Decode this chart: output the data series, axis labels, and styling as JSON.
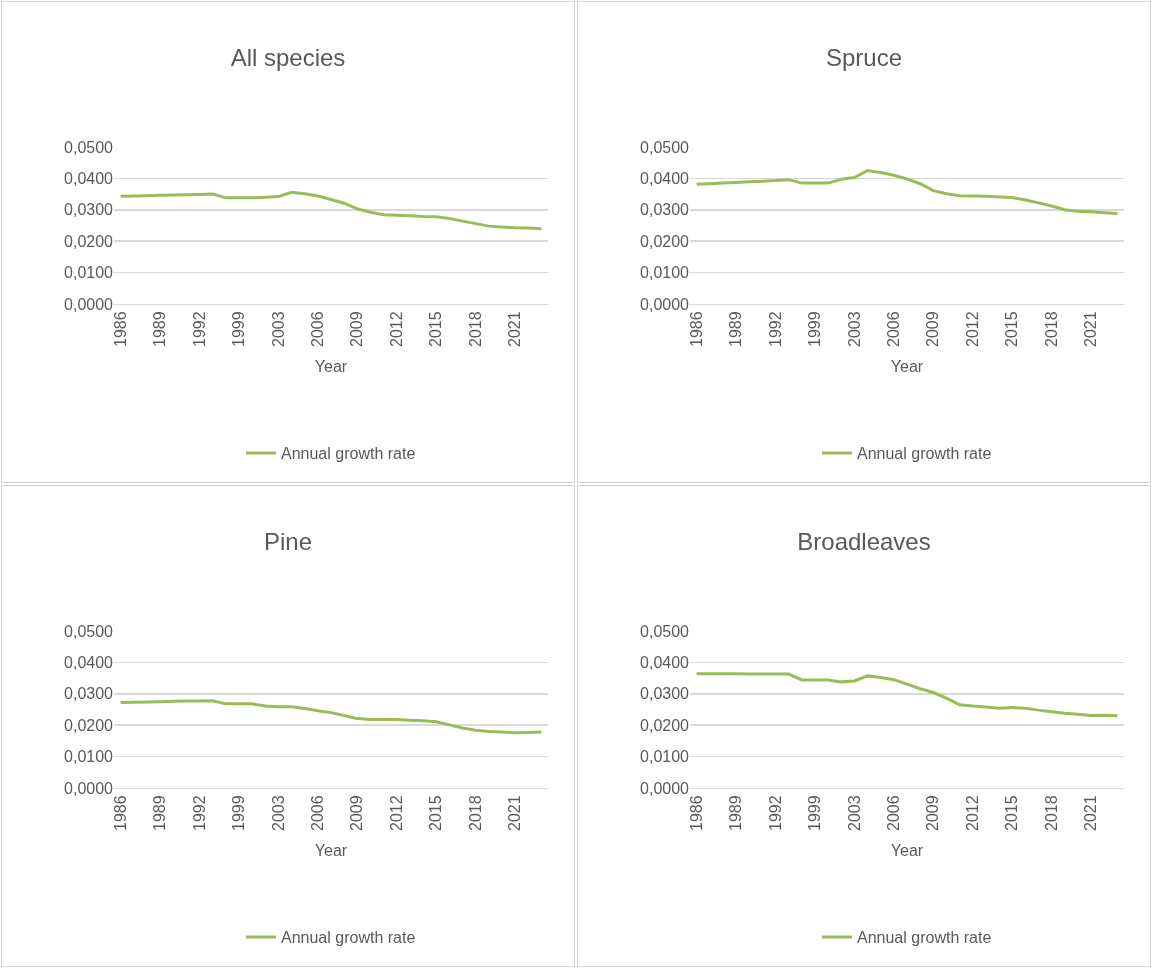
{
  "chart_data": [
    {
      "type": "line",
      "title": "All species",
      "xlabel": "Year",
      "categories": [
        "1986",
        null,
        null,
        "1989",
        null,
        null,
        "1992",
        null,
        null,
        "1999",
        null,
        null,
        "2003",
        null,
        null,
        "2006",
        null,
        null,
        "2009",
        null,
        null,
        "2012",
        null,
        null,
        "2015",
        null,
        null,
        "2018",
        null,
        null,
        "2021",
        null,
        null
      ],
      "series": [
        {
          "name": "Annual growth rate",
          "color": "#9bbb59",
          "values": [
            0.0343,
            0.0344,
            0.0345,
            0.0346,
            0.0347,
            0.0348,
            0.0349,
            0.035,
            0.0338,
            0.0338,
            0.0338,
            0.034,
            0.0342,
            0.0356,
            0.0351,
            0.0344,
            0.0333,
            0.0321,
            0.0303,
            0.0292,
            0.0284,
            0.0283,
            0.0281,
            0.0279,
            0.0278,
            0.0272,
            0.0264,
            0.0256,
            0.0248,
            0.0245,
            0.0243,
            0.0242,
            0.024
          ]
        }
      ],
      "ylim": [
        0,
        0.05
      ],
      "yticks": [
        {
          "value": 0,
          "label": "0,0000"
        },
        {
          "value": 0.01,
          "label": "0,0100"
        },
        {
          "value": 0.02,
          "label": "0,0200"
        },
        {
          "value": 0.03,
          "label": "0,0300"
        },
        {
          "value": 0.04,
          "label": "0,0400"
        },
        {
          "value": 0.05,
          "label": "0,0500"
        }
      ],
      "grid": "y",
      "legend": "bottom",
      "line_style": "solid"
    },
    {
      "type": "line",
      "title": "Spruce",
      "xlabel": "Year",
      "categories": [
        "1986",
        null,
        null,
        "1989",
        null,
        null,
        "1992",
        null,
        null,
        "1999",
        null,
        null,
        "2003",
        null,
        null,
        "2006",
        null,
        null,
        "2009",
        null,
        null,
        "2012",
        null,
        null,
        "2015",
        null,
        null,
        "2018",
        null,
        null,
        "2021",
        null,
        null
      ],
      "series": [
        {
          "name": "Annual growth rate",
          "color": "#9bbb59",
          "values": [
            0.0381,
            0.0383,
            0.0385,
            0.0387,
            0.0389,
            0.0391,
            0.0393,
            0.0396,
            0.0385,
            0.0385,
            0.0385,
            0.0397,
            0.0403,
            0.0425,
            0.0419,
            0.041,
            0.0398,
            0.0383,
            0.0361,
            0.0351,
            0.0345,
            0.0344,
            0.0343,
            0.0341,
            0.0339,
            0.0331,
            0.0322,
            0.0312,
            0.03,
            0.0295,
            0.0294,
            0.0291,
            0.0288
          ]
        }
      ],
      "ylim": [
        0,
        0.05
      ],
      "yticks": [
        {
          "value": 0,
          "label": "0,0000"
        },
        {
          "value": 0.01,
          "label": "0,0100"
        },
        {
          "value": 0.02,
          "label": "0,0200"
        },
        {
          "value": 0.03,
          "label": "0,0300"
        },
        {
          "value": 0.04,
          "label": "0,0400"
        },
        {
          "value": 0.05,
          "label": "0,0500"
        }
      ],
      "grid": "y",
      "legend": "bottom",
      "line_style": "solid"
    },
    {
      "type": "line",
      "title": "Pine",
      "xlabel": "Year",
      "categories": [
        "1986",
        null,
        null,
        "1989",
        null,
        null,
        "1992",
        null,
        null,
        "1999",
        null,
        null,
        "2003",
        null,
        null,
        "2006",
        null,
        null,
        "2009",
        null,
        null,
        "2012",
        null,
        null,
        "2015",
        null,
        null,
        "2018",
        null,
        null,
        "2021",
        null,
        null
      ],
      "series": [
        {
          "name": "Annual growth rate",
          "color": "#9bbb59",
          "values": [
            0.0272,
            0.0273,
            0.0274,
            0.0275,
            0.0276,
            0.0277,
            0.0277,
            0.0278,
            0.0268,
            0.0268,
            0.0268,
            0.0261,
            0.0259,
            0.0259,
            0.0253,
            0.0246,
            0.024,
            0.0231,
            0.0221,
            0.0218,
            0.0218,
            0.0218,
            0.0216,
            0.0214,
            0.0211,
            0.0201,
            0.0191,
            0.0184,
            0.018,
            0.0178,
            0.0176,
            0.0177,
            0.0178
          ]
        }
      ],
      "ylim": [
        0,
        0.05
      ],
      "yticks": [
        {
          "value": 0,
          "label": "0,0000"
        },
        {
          "value": 0.01,
          "label": "0,0100"
        },
        {
          "value": 0.02,
          "label": "0,0200"
        },
        {
          "value": 0.03,
          "label": "0,0300"
        },
        {
          "value": 0.04,
          "label": "0,0400"
        },
        {
          "value": 0.05,
          "label": "0,0500"
        }
      ],
      "grid": "y",
      "legend": "bottom",
      "line_style": "solid"
    },
    {
      "type": "line",
      "title": "Broadleaves",
      "xlabel": "Year",
      "categories": [
        "1986",
        null,
        null,
        "1989",
        null,
        null,
        "1992",
        null,
        null,
        "1999",
        null,
        null,
        "2003",
        null,
        null,
        "2006",
        null,
        null,
        "2009",
        null,
        null,
        "2012",
        null,
        null,
        "2015",
        null,
        null,
        "2018",
        null,
        null,
        "2021",
        null,
        null
      ],
      "series": [
        {
          "name": "Annual growth rate",
          "color": "#9bbb59",
          "values": [
            0.0364,
            0.0364,
            0.0364,
            0.0364,
            0.0363,
            0.0363,
            0.0363,
            0.0363,
            0.0344,
            0.0344,
            0.0344,
            0.0338,
            0.0341,
            0.0357,
            0.0352,
            0.0345,
            0.0331,
            0.0316,
            0.0304,
            0.0286,
            0.0265,
            0.0261,
            0.0258,
            0.0254,
            0.0256,
            0.0254,
            0.0248,
            0.0243,
            0.0238,
            0.0235,
            0.0231,
            0.0232,
            0.023
          ]
        }
      ],
      "ylim": [
        0,
        0.05
      ],
      "yticks": [
        {
          "value": 0,
          "label": "0,0000"
        },
        {
          "value": 0.01,
          "label": "0,0100"
        },
        {
          "value": 0.02,
          "label": "0,0200"
        },
        {
          "value": 0.03,
          "label": "0,0300"
        },
        {
          "value": 0.04,
          "label": "0,0400"
        },
        {
          "value": 0.05,
          "label": "0,0500"
        }
      ],
      "grid": "y",
      "legend": "bottom",
      "line_style": "solid"
    }
  ]
}
